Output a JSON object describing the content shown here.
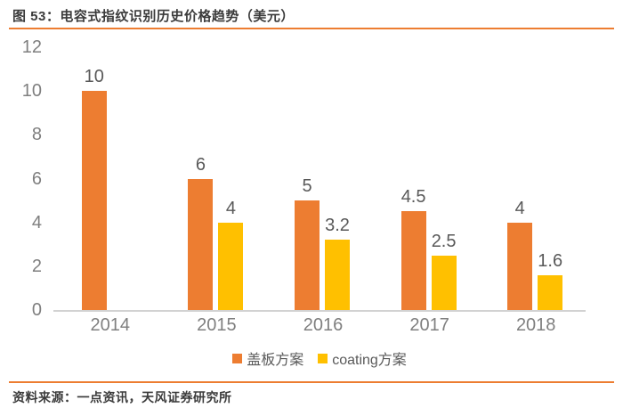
{
  "figure": {
    "title": "图 53：电容式指纹识别历史价格趋势（美元）",
    "source": "资料来源：一点资讯，天风证券研究所"
  },
  "colors": {
    "accent_rule": "#ED7D31",
    "bar_orange": "#ED7D31",
    "bar_yellow": "#FFC000",
    "axis_line": "#D2D2D2",
    "tick_gray": "#7F7F7F",
    "label_gray": "#595959",
    "title_color": "#3B3B3B"
  },
  "chart_data": {
    "type": "bar",
    "title": "电容式指纹识别历史价格趋势（美元）",
    "categories": [
      "2014",
      "2015",
      "2016",
      "2017",
      "2018"
    ],
    "series": [
      {
        "name": "盖板方案",
        "color": "#ED7D31",
        "values": [
          10,
          6,
          5,
          4.5,
          4
        ]
      },
      {
        "name": "coating方案",
        "color": "#FFC000",
        "values": [
          null,
          4,
          3.2,
          2.5,
          1.6
        ]
      }
    ],
    "data_labels": [
      "10",
      "6",
      "4",
      "5",
      "3.2",
      "4.5",
      "2.5",
      "4",
      "1.6"
    ],
    "ylim": [
      0,
      12
    ],
    "yticks": [
      0,
      2,
      4,
      6,
      8,
      10,
      12
    ],
    "grid": false,
    "legend_position": "bottom",
    "show_data_labels": true
  }
}
